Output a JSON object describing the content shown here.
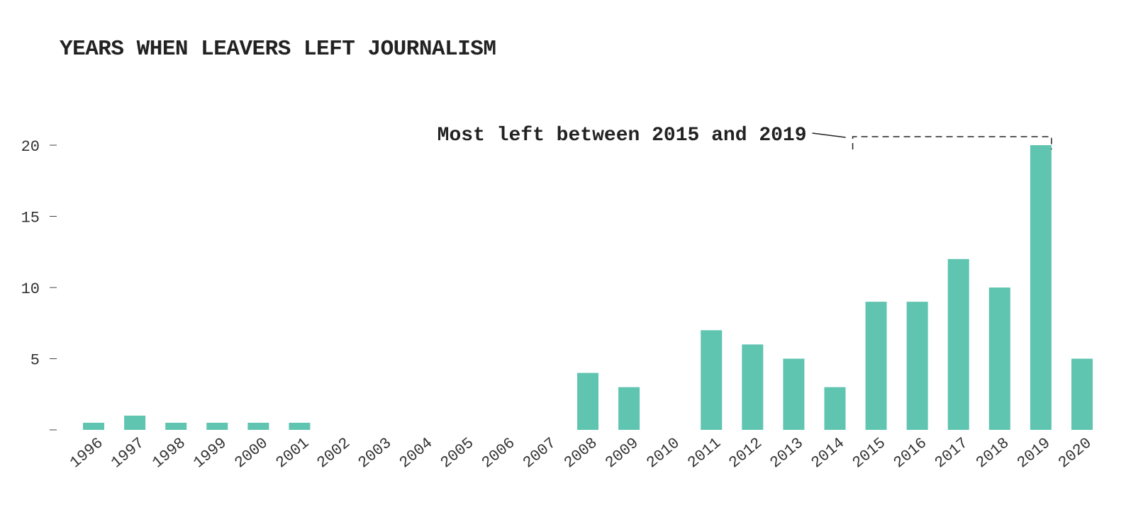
{
  "chart_data": {
    "type": "bar",
    "title": "YEARS WHEN LEAVERS LEFT JOURNALISM",
    "xlabel": "",
    "ylabel": "",
    "categories": [
      "1996",
      "1997",
      "1998",
      "1999",
      "2000",
      "2001",
      "2002",
      "2003",
      "2004",
      "2005",
      "2006",
      "2007",
      "2008",
      "2009",
      "2010",
      "2011",
      "2012",
      "2013",
      "2014",
      "2015",
      "2016",
      "2017",
      "2018",
      "2019",
      "2020"
    ],
    "values": [
      0.5,
      1,
      0.5,
      0.5,
      0.5,
      0.5,
      0,
      0,
      0,
      0,
      0,
      0,
      4,
      3,
      0,
      7,
      6,
      5,
      3,
      9,
      9,
      12,
      10,
      20,
      5
    ],
    "ylim": [
      0,
      20
    ],
    "yticks": [
      0,
      5,
      10,
      15,
      20
    ],
    "ytick_labels": [
      "",
      "5",
      "10",
      "15",
      "20"
    ],
    "grid": false,
    "bar_color": "#5fc4b0",
    "annotation": {
      "text": "Most left between 2015 and 2019",
      "start": "2015",
      "end": "2019"
    }
  }
}
